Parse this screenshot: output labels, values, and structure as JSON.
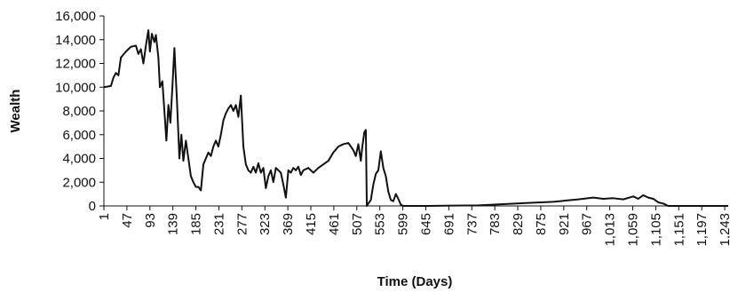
{
  "chart_data": {
    "type": "line",
    "xlabel": "Time (Days)",
    "ylabel": "Wealth",
    "x": [
      1,
      15,
      20,
      25,
      30,
      35,
      45,
      55,
      65,
      70,
      75,
      80,
      85,
      90,
      93,
      97,
      102,
      105,
      110,
      113,
      118,
      122,
      126,
      130,
      134,
      138,
      142,
      147,
      152,
      156,
      160,
      165,
      170,
      175,
      180,
      185,
      190,
      195,
      200,
      205,
      210,
      215,
      220,
      225,
      230,
      235,
      240,
      245,
      250,
      255,
      260,
      265,
      270,
      275,
      280,
      285,
      290,
      295,
      300,
      305,
      310,
      315,
      320,
      325,
      330,
      335,
      340,
      345,
      350,
      355,
      360,
      365,
      370,
      375,
      380,
      385,
      390,
      395,
      400,
      410,
      420,
      430,
      440,
      450,
      460,
      470,
      480,
      490,
      495,
      500,
      505,
      510,
      515,
      518,
      522,
      525,
      527,
      530,
      535,
      540,
      545,
      550,
      555,
      560,
      565,
      570,
      575,
      580,
      585,
      590,
      595,
      600,
      650,
      700,
      750,
      800,
      850,
      900,
      950,
      980,
      1000,
      1020,
      1040,
      1060,
      1070,
      1080,
      1090,
      1100,
      1110,
      1120,
      1130,
      1200,
      1250
    ],
    "series": [
      {
        "name": "Wealth",
        "color": "#111111",
        "values": [
          10000,
          10100,
          10800,
          11200,
          11000,
          12500,
          13000,
          13400,
          13500,
          12800,
          13200,
          12000,
          13500,
          14800,
          13000,
          14500,
          13800,
          14400,
          12500,
          10000,
          10500,
          8000,
          5500,
          8500,
          7000,
          10000,
          13300,
          9000,
          4000,
          6000,
          3800,
          5500,
          4000,
          2500,
          2000,
          1600,
          1600,
          1300,
          3500,
          4000,
          4500,
          4200,
          5000,
          5500,
          5000,
          6000,
          7200,
          7800,
          8200,
          8500,
          8000,
          8500,
          7500,
          9300,
          5000,
          3500,
          3000,
          2800,
          3300,
          2800,
          3600,
          2800,
          3200,
          1500,
          2500,
          3000,
          2000,
          3200,
          3000,
          2800,
          1800,
          700,
          3000,
          2800,
          3200,
          3000,
          3300,
          2600,
          3000,
          3200,
          2800,
          3200,
          3500,
          3800,
          4500,
          5000,
          5200,
          5300,
          5000,
          4700,
          4200,
          5200,
          3800,
          5000,
          6200,
          6400,
          0,
          200,
          500,
          1800,
          2700,
          3000,
          4600,
          3200,
          2500,
          1200,
          500,
          400,
          1000,
          600,
          100,
          0,
          0,
          30,
          50,
          150,
          250,
          350,
          550,
          700,
          600,
          650,
          550,
          800,
          600,
          900,
          700,
          600,
          300,
          200,
          0,
          0,
          0
        ]
      }
    ],
    "xlim": [
      1,
      1250
    ],
    "xticks": [
      1,
      47,
      93,
      139,
      185,
      231,
      277,
      323,
      369,
      415,
      461,
      507,
      553,
      599,
      645,
      691,
      737,
      783,
      829,
      875,
      921,
      967,
      {
        "value": 1013,
        "label": "1,013"
      },
      {
        "value": 1059,
        "label": "1,059"
      },
      {
        "value": 1105,
        "label": "1,105"
      },
      {
        "value": 1151,
        "label": "1,151"
      },
      {
        "value": 1197,
        "label": "1,197"
      },
      {
        "value": 1243,
        "label": "1,243"
      }
    ],
    "ylim": [
      0,
      16000
    ],
    "yticks": [
      0,
      {
        "value": 2000,
        "label": "2,000"
      },
      {
        "value": 4000,
        "label": "4,000"
      },
      {
        "value": 6000,
        "label": "6,000"
      },
      {
        "value": 8000,
        "label": "8,000"
      },
      {
        "value": 10000,
        "label": "10,000"
      },
      {
        "value": 12000,
        "label": "12,000"
      },
      {
        "value": 14000,
        "label": "14,000"
      },
      {
        "value": 16000,
        "label": "16,000"
      }
    ]
  }
}
